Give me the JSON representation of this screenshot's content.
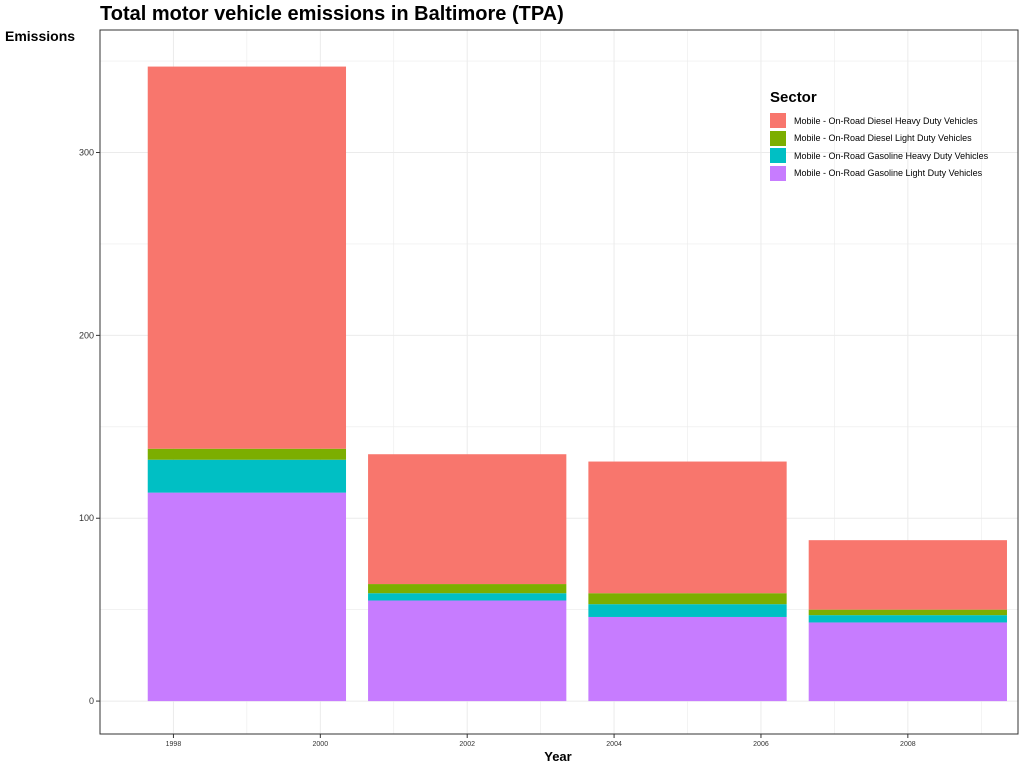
{
  "chart_data": {
    "type": "bar",
    "stacked": true,
    "title": "Total motor vehicle emissions in Baltimore (TPA)",
    "xlabel": "Year",
    "ylabel": "Emissions",
    "x_range": [
      1997,
      2009.5
    ],
    "x_ticks": [
      "1998",
      "2000",
      "2002",
      "2004",
      "2006",
      "2008"
    ],
    "ylim": [
      -18,
      367
    ],
    "y_ticks": [
      "0",
      "100",
      "200",
      "300"
    ],
    "grid": true,
    "legend_title": "Sector",
    "legend_position": "top-right",
    "categories": [
      1999,
      2002,
      2005,
      2008
    ],
    "bar_width": 2.7,
    "series": [
      {
        "name": "Mobile - On-Road Gasoline Light Duty Vehicles",
        "color": "#C77CFF",
        "values": [
          114,
          55,
          46,
          43
        ]
      },
      {
        "name": "Mobile - On-Road Gasoline Heavy Duty Vehicles",
        "color": "#00BFC4",
        "values": [
          18,
          4,
          7,
          4
        ]
      },
      {
        "name": "Mobile - On-Road Diesel Light Duty Vehicles",
        "color": "#7CAE00",
        "values": [
          6,
          5,
          6,
          3
        ]
      },
      {
        "name": "Mobile - On-Road Diesel Heavy Duty Vehicles",
        "color": "#F8766D",
        "values": [
          209,
          71,
          72,
          38
        ]
      }
    ],
    "legend_order": [
      3,
      2,
      1,
      0
    ]
  }
}
